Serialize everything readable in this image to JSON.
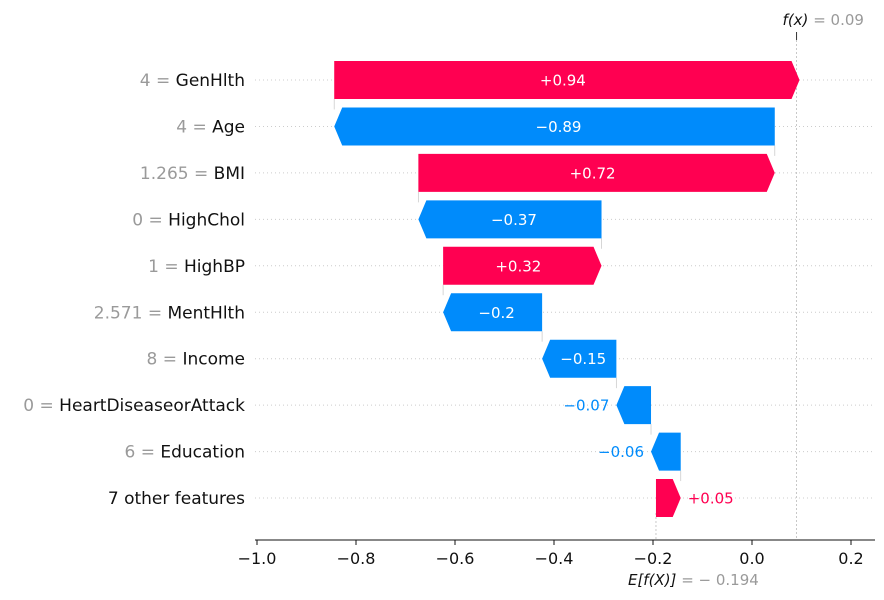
{
  "chart_data": {
    "type": "waterfall",
    "base_value": -0.194,
    "output_value": 0.09,
    "fx_label": {
      "name": "f(x)",
      "eq": " = ",
      "value": "0.09"
    },
    "efx_label": {
      "name": "E[f(X)]",
      "eq": " = ",
      "value": "− 0.194"
    },
    "xlim": [
      -1.0,
      0.25
    ],
    "x_ticks": [
      -1.0,
      -0.8,
      -0.6,
      -0.4,
      -0.2,
      0.0,
      0.2
    ],
    "x_tick_labels": [
      "−1.0",
      "−0.8",
      "−0.6",
      "−0.4",
      "−0.2",
      "0.0",
      "0.2"
    ],
    "features": [
      {
        "value_text": "4",
        "eq": " = ",
        "name": "GenHlth",
        "contribution": 0.94,
        "label": "+0.94"
      },
      {
        "value_text": "4",
        "eq": " = ",
        "name": "Age",
        "contribution": -0.89,
        "label": "−0.89"
      },
      {
        "value_text": "1.265",
        "eq": " = ",
        "name": "BMI",
        "contribution": 0.72,
        "label": "+0.72"
      },
      {
        "value_text": "0",
        "eq": " = ",
        "name": "HighChol",
        "contribution": -0.37,
        "label": "−0.37"
      },
      {
        "value_text": "1",
        "eq": " = ",
        "name": "HighBP",
        "contribution": 0.32,
        "label": "+0.32"
      },
      {
        "value_text": "2.571",
        "eq": " = ",
        "name": "MentHlth",
        "contribution": -0.2,
        "label": "−0.2"
      },
      {
        "value_text": "8",
        "eq": " = ",
        "name": "Income",
        "contribution": -0.15,
        "label": "−0.15"
      },
      {
        "value_text": "0",
        "eq": " = ",
        "name": "HeartDiseaseorAttack",
        "contribution": -0.07,
        "label": "−0.07"
      },
      {
        "value_text": "6",
        "eq": " = ",
        "name": "Education",
        "contribution": -0.06,
        "label": "−0.06"
      },
      {
        "value_text": "",
        "eq": "",
        "name": "7 other features",
        "contribution": 0.05,
        "label": "+0.05"
      }
    ],
    "colors": {
      "positive": "#ff0051",
      "negative": "#008bfb"
    }
  }
}
